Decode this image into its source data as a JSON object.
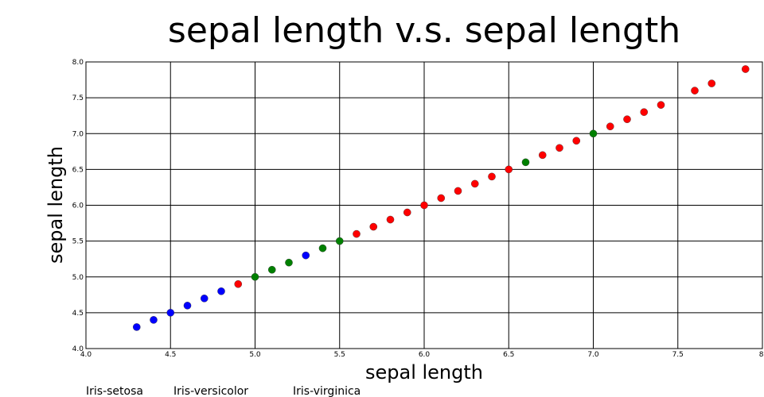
{
  "chart_data": {
    "type": "scatter",
    "title": "sepal length v.s. sepal length",
    "xlabel": "sepal length",
    "ylabel": "sepal length",
    "xlim": [
      4.0,
      8.0
    ],
    "ylim": [
      4.0,
      8.0
    ],
    "x_ticks": [
      4.0,
      4.5,
      5.0,
      5.5,
      6.0,
      6.5,
      7.0,
      7.5,
      8.0
    ],
    "y_ticks": [
      4.0,
      4.5,
      5.0,
      5.5,
      6.0,
      6.5,
      7.0,
      7.5,
      8.0
    ],
    "x_tick_labels": [
      "4.0",
      "4.5",
      "5.0",
      "5.5",
      "6.0",
      "6.5",
      "7.0",
      "7.5",
      "8."
    ],
    "y_tick_labels": [
      "4.0",
      "4.5",
      "5.0",
      "5.5",
      "6.0",
      "6.5",
      "7.0",
      "7.5",
      "8.0"
    ],
    "grid": true,
    "legend_position": "bottom-left",
    "series": [
      {
        "name": "Iris-setosa",
        "color": "#0000ff",
        "x": [
          4.3,
          4.4,
          4.5,
          4.6,
          4.7,
          4.8,
          5.3
        ],
        "y": [
          4.3,
          4.4,
          4.5,
          4.6,
          4.7,
          4.8,
          5.3
        ]
      },
      {
        "name": "Iris-versicolor",
        "color": "#008000",
        "x": [
          5.0,
          5.1,
          5.2,
          5.4,
          5.5,
          6.6,
          7.0
        ],
        "y": [
          5.0,
          5.1,
          5.2,
          5.4,
          5.5,
          6.6,
          7.0
        ]
      },
      {
        "name": "Iris-virginica",
        "color": "#ff0000",
        "x": [
          4.9,
          5.6,
          5.7,
          5.8,
          5.9,
          6.0,
          6.1,
          6.2,
          6.3,
          6.4,
          6.5,
          6.7,
          6.8,
          6.9,
          7.1,
          7.2,
          7.3,
          7.4,
          7.6,
          7.7,
          7.9
        ],
        "y": [
          4.9,
          5.6,
          5.7,
          5.8,
          5.9,
          6.0,
          6.1,
          6.2,
          6.3,
          6.4,
          6.5,
          6.7,
          6.8,
          6.9,
          7.1,
          7.2,
          7.3,
          7.4,
          7.6,
          7.7,
          7.9
        ]
      }
    ]
  }
}
